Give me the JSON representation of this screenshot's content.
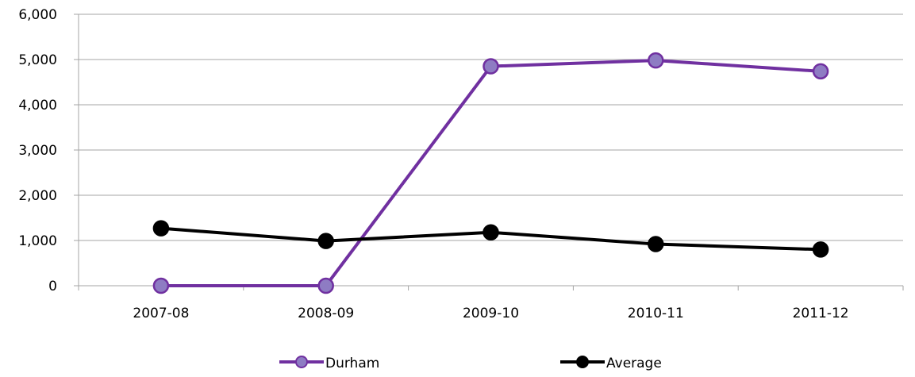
{
  "chart_data": {
    "type": "line",
    "categories": [
      "2007-08",
      "2008-09",
      "2009-10",
      "2010-11",
      "2011-12"
    ],
    "series": [
      {
        "name": "Durham",
        "values": [
          0,
          0,
          4850,
          4980,
          4740
        ],
        "color": "#7030a0",
        "marker_fill": "#8e7cc3"
      },
      {
        "name": "Average",
        "values": [
          1270,
          990,
          1180,
          920,
          800
        ],
        "color": "#000000",
        "marker_fill": "#000000"
      }
    ],
    "ylim": [
      0,
      6000
    ],
    "yticks": [
      0,
      1000,
      2000,
      3000,
      4000,
      5000,
      6000
    ],
    "ytick_labels": [
      "0",
      "1,000",
      "2,000",
      "3,000",
      "4,000",
      "5,000",
      "6,000"
    ],
    "grid": true,
    "legend_position": "bottom"
  }
}
